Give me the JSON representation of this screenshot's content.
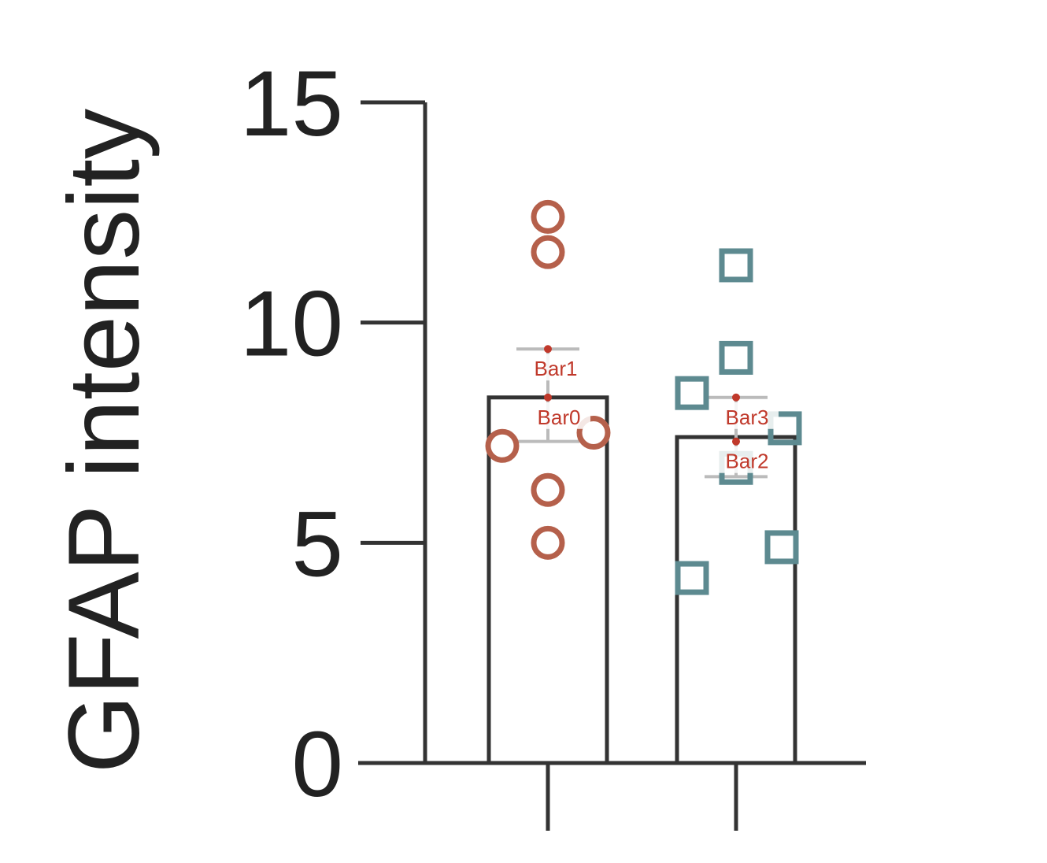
{
  "chart_data": {
    "type": "bar",
    "ylabel": "GFAP intensity",
    "xlabel": "",
    "ylim": [
      0,
      15
    ],
    "yticks": [
      0,
      5,
      10,
      15
    ],
    "categories": [
      "",
      ""
    ],
    "values": [
      8.3,
      7.4
    ],
    "error_upper": [
      9.4,
      8.3
    ],
    "error_lower": [
      7.3,
      6.5
    ],
    "points": [
      {
        "marker": "circle",
        "color": "#b5604b",
        "values": [
          12.4,
          11.6,
          7.2,
          7.5,
          6.2,
          5.0
        ]
      },
      {
        "marker": "square",
        "color": "#5d8a90",
        "values": [
          11.3,
          9.2,
          8.4,
          7.6,
          6.7,
          4.9,
          4.2
        ]
      }
    ],
    "annotations": [
      {
        "label": "Bar1",
        "value": 9.4
      },
      {
        "label": "Bar0",
        "value": 8.3
      },
      {
        "label": "Bar3",
        "value": 8.3
      },
      {
        "label": "Bar2",
        "value": 7.3
      }
    ],
    "grid": false,
    "colors": {
      "axis": "#333333",
      "annotation": "#c0392b"
    }
  }
}
